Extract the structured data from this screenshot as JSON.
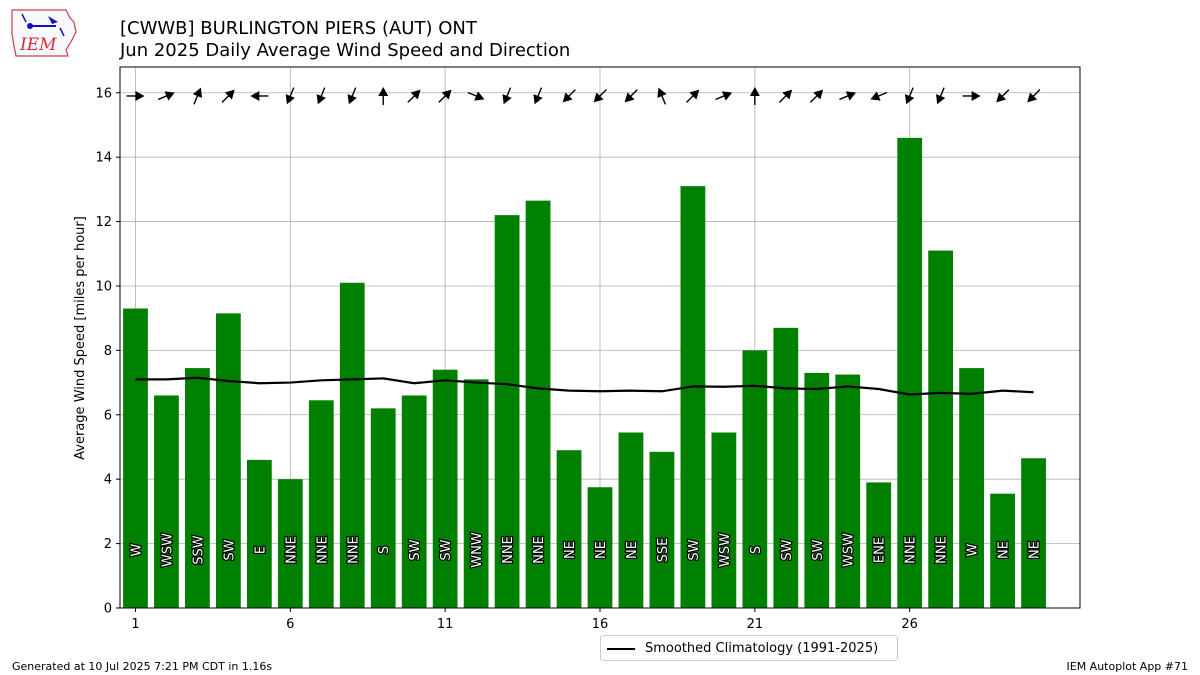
{
  "header": {
    "logo_text": "IEM",
    "title_line1": "[CWWB] BURLINGTON PIERS (AUT)  ONT",
    "title_line2": "Jun 2025 Daily Average Wind Speed and Direction"
  },
  "footer": {
    "left": "Generated at 10 Jul 2025 7:21 PM CDT in 1.16s",
    "right": "IEM Autoplot App #71"
  },
  "legend": {
    "label": "Smoothed Climatology (1991-2025)"
  },
  "colors": {
    "bar": "#008000",
    "climo_line": "#000000",
    "grid": "#b0b0b0"
  },
  "chart_data": {
    "type": "bar",
    "ylabel": "Average Wind Speed [miles per hour]",
    "xlabel": "",
    "ylim": [
      0,
      16.8
    ],
    "xlim": [
      0.5,
      31.5
    ],
    "grid": true,
    "legend_position": "bottom-center",
    "x_ticks": [
      1,
      6,
      11,
      16,
      21,
      26
    ],
    "y_ticks": [
      0,
      2,
      4,
      6,
      8,
      10,
      12,
      14,
      16
    ],
    "days": [
      1,
      2,
      3,
      4,
      5,
      6,
      7,
      8,
      9,
      10,
      11,
      12,
      13,
      14,
      15,
      16,
      17,
      18,
      19,
      20,
      21,
      22,
      23,
      24,
      25,
      26,
      27,
      28,
      29,
      30
    ],
    "wind_speed": [
      9.3,
      6.6,
      7.45,
      9.15,
      4.6,
      4.0,
      6.45,
      10.1,
      6.2,
      6.6,
      7.4,
      7.1,
      12.2,
      12.65,
      4.9,
      3.75,
      5.45,
      4.85,
      13.1,
      5.45,
      8.0,
      8.7,
      7.3,
      7.25,
      3.9,
      14.6,
      11.1,
      7.45,
      3.55,
      4.65
    ],
    "direction_labels": [
      "W",
      "WSW",
      "SSW",
      "SW",
      "E",
      "NNE",
      "NNE",
      "NNE",
      "S",
      "SW",
      "SW",
      "WNW",
      "NNE",
      "NNE",
      "NE",
      "NE",
      "NE",
      "SSE",
      "SW",
      "WSW",
      "S",
      "SW",
      "SW",
      "WSW",
      "ENE",
      "NNE",
      "NNE",
      "W",
      "NE",
      "NE"
    ],
    "direction_degrees": [
      270,
      247.5,
      202.5,
      225,
      90,
      22.5,
      22.5,
      22.5,
      180,
      225,
      225,
      292.5,
      22.5,
      22.5,
      45,
      45,
      45,
      157.5,
      225,
      247.5,
      180,
      225,
      225,
      247.5,
      67.5,
      22.5,
      22.5,
      270,
      45,
      45
    ],
    "series": [
      {
        "name": "Smoothed Climatology (1991-2025)",
        "values": [
          7.1,
          7.1,
          7.15,
          7.05,
          6.98,
          7.0,
          7.07,
          7.1,
          7.13,
          6.98,
          7.07,
          7.0,
          6.95,
          6.82,
          6.75,
          6.73,
          6.75,
          6.73,
          6.88,
          6.87,
          6.9,
          6.82,
          6.8,
          6.88,
          6.8,
          6.63,
          6.68,
          6.65,
          6.75,
          6.7
        ]
      }
    ]
  }
}
